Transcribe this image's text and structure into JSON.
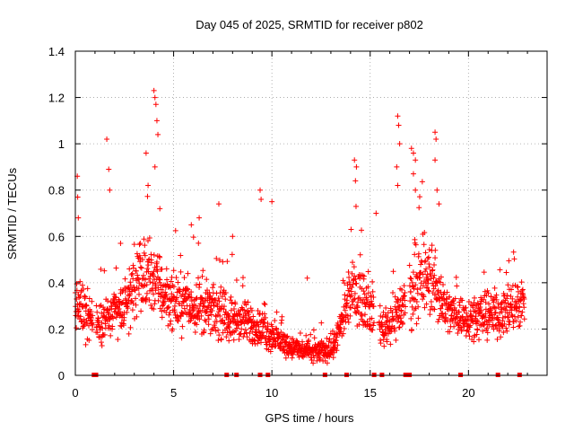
{
  "chart_data": {
    "type": "scatter",
    "title": "Day 045 of 2025, SRMTID for receiver p802",
    "xlabel": "GPS time / hours",
    "ylabel": "SRMTID / TECUs",
    "xlim": [
      0,
      24
    ],
    "ylim": [
      0,
      1.4
    ],
    "x_ticks": [
      "0",
      "5",
      "10",
      "15",
      "20"
    ],
    "y_ticks": [
      "0",
      "0.2",
      "0.4",
      "0.6",
      "0.8",
      "1",
      "1.2",
      "1.4"
    ],
    "grid": true,
    "marker": "+",
    "color": "#ff0000",
    "envelope": [
      {
        "x": 0.0,
        "base": 0.3,
        "spread": 0.12
      },
      {
        "x": 0.5,
        "base": 0.28,
        "spread": 0.12
      },
      {
        "x": 1.0,
        "base": 0.22,
        "spread": 0.08
      },
      {
        "x": 1.5,
        "base": 0.24,
        "spread": 0.1
      },
      {
        "x": 2.0,
        "base": 0.27,
        "spread": 0.1
      },
      {
        "x": 2.5,
        "base": 0.3,
        "spread": 0.12
      },
      {
        "x": 3.0,
        "base": 0.38,
        "spread": 0.14
      },
      {
        "x": 3.5,
        "base": 0.4,
        "spread": 0.15
      },
      {
        "x": 4.0,
        "base": 0.42,
        "spread": 0.16
      },
      {
        "x": 4.5,
        "base": 0.35,
        "spread": 0.14
      },
      {
        "x": 5.0,
        "base": 0.32,
        "spread": 0.12
      },
      {
        "x": 6.0,
        "base": 0.3,
        "spread": 0.12
      },
      {
        "x": 7.0,
        "base": 0.28,
        "spread": 0.11
      },
      {
        "x": 8.0,
        "base": 0.24,
        "spread": 0.1
      },
      {
        "x": 9.0,
        "base": 0.22,
        "spread": 0.09
      },
      {
        "x": 10.0,
        "base": 0.17,
        "spread": 0.07
      },
      {
        "x": 11.0,
        "base": 0.12,
        "spread": 0.05
      },
      {
        "x": 12.0,
        "base": 0.1,
        "spread": 0.05
      },
      {
        "x": 13.0,
        "base": 0.11,
        "spread": 0.05
      },
      {
        "x": 13.5,
        "base": 0.2,
        "spread": 0.08
      },
      {
        "x": 14.0,
        "base": 0.35,
        "spread": 0.12
      },
      {
        "x": 14.5,
        "base": 0.36,
        "spread": 0.14
      },
      {
        "x": 15.0,
        "base": 0.28,
        "spread": 0.1
      },
      {
        "x": 15.7,
        "base": 0.2,
        "spread": 0.08
      },
      {
        "x": 16.5,
        "base": 0.28,
        "spread": 0.12
      },
      {
        "x": 17.5,
        "base": 0.4,
        "spread": 0.15
      },
      {
        "x": 18.0,
        "base": 0.42,
        "spread": 0.16
      },
      {
        "x": 18.5,
        "base": 0.35,
        "spread": 0.14
      },
      {
        "x": 19.0,
        "base": 0.27,
        "spread": 0.1
      },
      {
        "x": 20.0,
        "base": 0.25,
        "spread": 0.09
      },
      {
        "x": 21.0,
        "base": 0.26,
        "spread": 0.1
      },
      {
        "x": 22.0,
        "base": 0.28,
        "spread": 0.11
      },
      {
        "x": 22.8,
        "base": 0.32,
        "spread": 0.12
      }
    ],
    "outliers": [
      {
        "x": 0.1,
        "y": 0.86
      },
      {
        "x": 0.12,
        "y": 0.77
      },
      {
        "x": 0.15,
        "y": 0.68
      },
      {
        "x": 1.6,
        "y": 1.02
      },
      {
        "x": 1.7,
        "y": 0.89
      },
      {
        "x": 1.75,
        "y": 0.8
      },
      {
        "x": 3.6,
        "y": 0.96
      },
      {
        "x": 3.7,
        "y": 0.82
      },
      {
        "x": 4.0,
        "y": 1.23
      },
      {
        "x": 4.05,
        "y": 1.2
      },
      {
        "x": 4.1,
        "y": 1.17
      },
      {
        "x": 4.15,
        "y": 1.1
      },
      {
        "x": 4.2,
        "y": 1.04
      },
      {
        "x": 4.05,
        "y": 0.9
      },
      {
        "x": 4.3,
        "y": 0.72
      },
      {
        "x": 9.4,
        "y": 0.8
      },
      {
        "x": 9.45,
        "y": 0.76
      },
      {
        "x": 14.2,
        "y": 0.93
      },
      {
        "x": 14.3,
        "y": 0.9
      },
      {
        "x": 14.25,
        "y": 0.84
      },
      {
        "x": 16.4,
        "y": 1.12
      },
      {
        "x": 16.45,
        "y": 1.08
      },
      {
        "x": 16.5,
        "y": 1.0
      },
      {
        "x": 16.35,
        "y": 0.9
      },
      {
        "x": 16.4,
        "y": 0.82
      },
      {
        "x": 17.1,
        "y": 0.98
      },
      {
        "x": 17.2,
        "y": 0.96
      },
      {
        "x": 17.3,
        "y": 0.93
      },
      {
        "x": 17.2,
        "y": 0.87
      },
      {
        "x": 17.3,
        "y": 0.8
      },
      {
        "x": 18.3,
        "y": 1.05
      },
      {
        "x": 18.35,
        "y": 1.02
      },
      {
        "x": 18.3,
        "y": 0.93
      },
      {
        "x": 18.4,
        "y": 0.8
      },
      {
        "x": 18.5,
        "y": 0.74
      },
      {
        "x": 5.9,
        "y": 0.65
      },
      {
        "x": 6.3,
        "y": 0.68
      },
      {
        "x": 7.3,
        "y": 0.74
      },
      {
        "x": 8.0,
        "y": 0.6
      },
      {
        "x": 10.0,
        "y": 0.75
      },
      {
        "x": 11.8,
        "y": 0.42
      },
      {
        "x": 2.3,
        "y": 0.57
      },
      {
        "x": 3.3,
        "y": 0.57
      },
      {
        "x": 15.3,
        "y": 0.7
      }
    ],
    "zero_markers": [
      0.95,
      1.05,
      7.7,
      8.2,
      9.4,
      9.8,
      12.7,
      13.8,
      15.2,
      15.6,
      16.8,
      17.0,
      19.6,
      21.5,
      22.6
    ]
  }
}
